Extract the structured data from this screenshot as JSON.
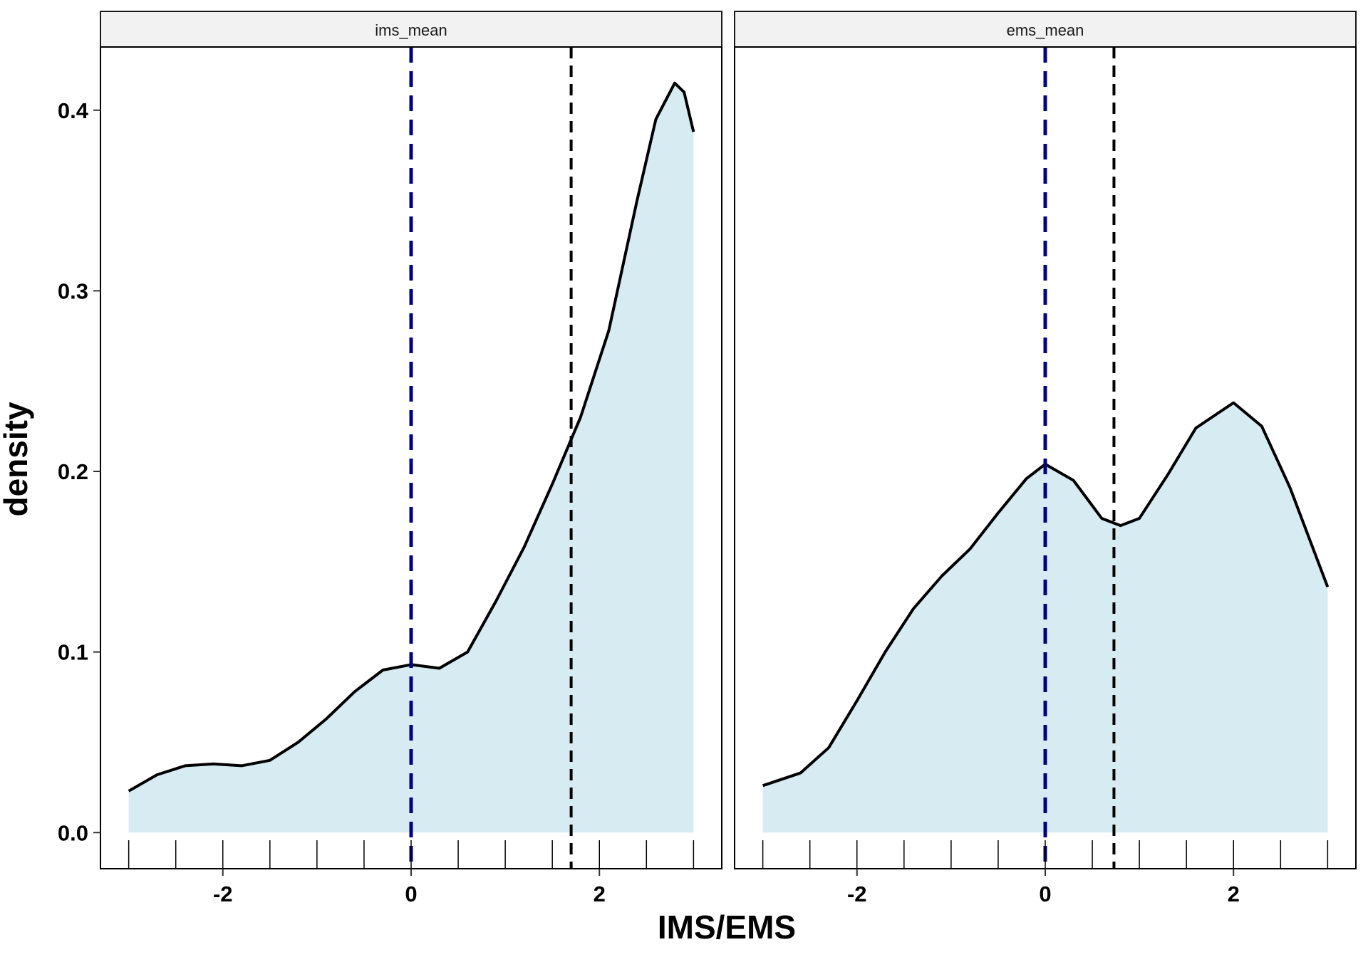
{
  "chart_data": {
    "type": "area",
    "xlabel": "IMS/EMS",
    "ylabel": "density",
    "xlim": [
      -3.3,
      3.3
    ],
    "ylim": [
      -0.02,
      0.435
    ],
    "x_ticks": [
      -2,
      0,
      2
    ],
    "y_ticks": [
      0.0,
      0.1,
      0.2,
      0.3,
      0.4
    ],
    "y_tick_labels": [
      "0.0",
      "0.1",
      "0.2",
      "0.3",
      "0.4"
    ],
    "rug_x": [
      -3.0,
      -2.5,
      -2.0,
      -1.5,
      -1.0,
      -0.5,
      0.0,
      0.5,
      1.0,
      1.5,
      2.0,
      2.5,
      3.0
    ],
    "fill_color": "#d6ebf2",
    "line_color": "#000000",
    "reference_color": "#000080",
    "mean_color": "#000000",
    "grid": false,
    "panels": [
      {
        "strip": "ims_mean",
        "reference_x": 0.0,
        "mean_x": 1.7,
        "x": [
          -3.0,
          -2.7,
          -2.4,
          -2.1,
          -1.8,
          -1.5,
          -1.2,
          -0.9,
          -0.6,
          -0.3,
          0.0,
          0.3,
          0.6,
          0.9,
          1.2,
          1.5,
          1.8,
          2.1,
          2.4,
          2.6,
          2.8,
          2.9,
          3.0
        ],
        "y": [
          0.023,
          0.032,
          0.037,
          0.038,
          0.037,
          0.04,
          0.05,
          0.063,
          0.078,
          0.09,
          0.093,
          0.091,
          0.1,
          0.128,
          0.158,
          0.193,
          0.23,
          0.278,
          0.35,
          0.395,
          0.415,
          0.41,
          0.388
        ]
      },
      {
        "strip": "ems_mean",
        "reference_x": 0.0,
        "mean_x": 0.73,
        "x": [
          -3.0,
          -2.6,
          -2.3,
          -2.0,
          -1.7,
          -1.4,
          -1.1,
          -0.8,
          -0.5,
          -0.2,
          0.0,
          0.3,
          0.6,
          0.8,
          1.0,
          1.3,
          1.6,
          2.0,
          2.3,
          2.6,
          3.0
        ],
        "y": [
          0.026,
          0.033,
          0.047,
          0.073,
          0.1,
          0.124,
          0.142,
          0.157,
          0.177,
          0.196,
          0.204,
          0.195,
          0.174,
          0.17,
          0.174,
          0.198,
          0.224,
          0.238,
          0.225,
          0.191,
          0.136
        ]
      }
    ]
  }
}
